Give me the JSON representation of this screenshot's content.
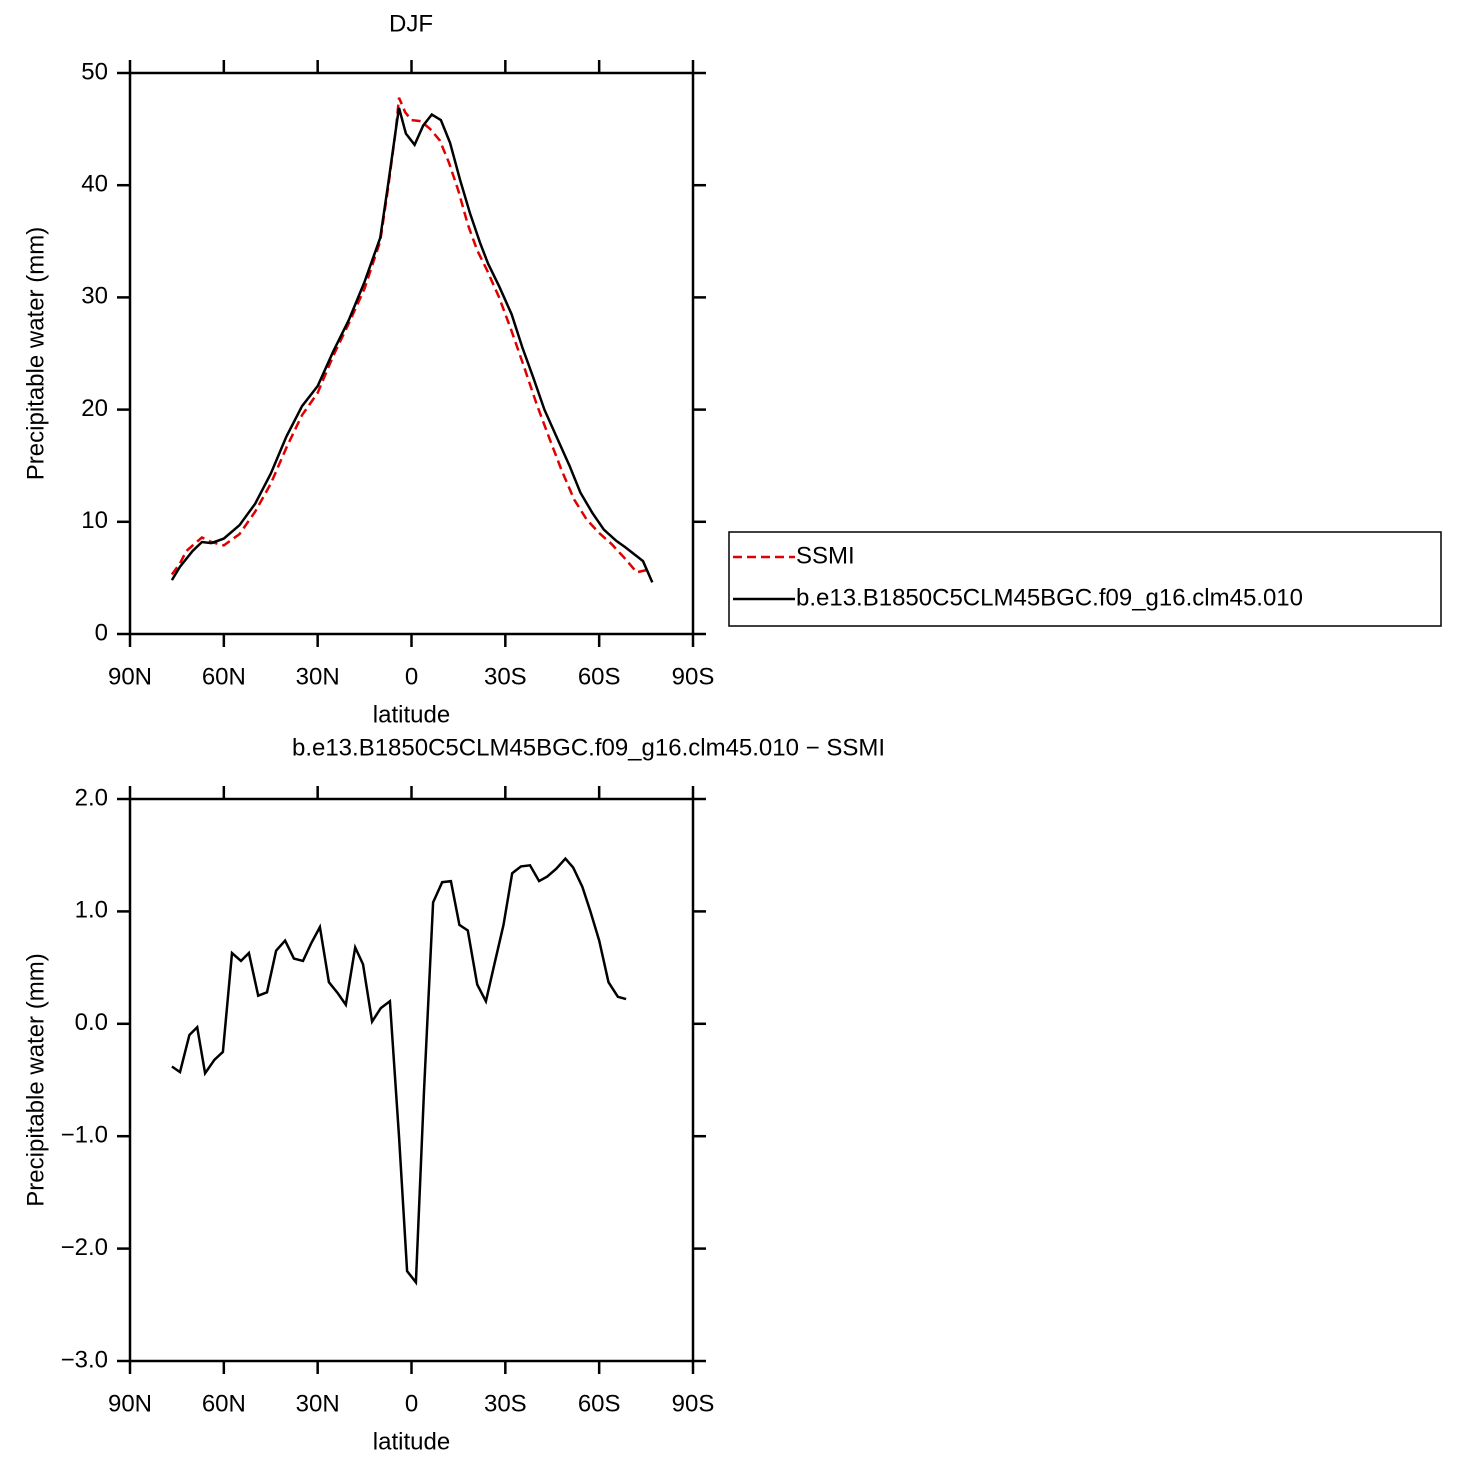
{
  "chart_data": [
    {
      "type": "line",
      "title": "DJF",
      "xlabel": "latitude",
      "ylabel": "Precipitable water (mm)",
      "xlim": [
        90,
        -90
      ],
      "xticks": [
        {
          "value": 90,
          "label": "90N"
        },
        {
          "value": 60,
          "label": "60N"
        },
        {
          "value": 30,
          "label": "30N"
        },
        0,
        {
          "value": -30,
          "label": "30S"
        },
        {
          "value": -60,
          "label": "60S"
        },
        {
          "value": -90,
          "label": "90S"
        }
      ],
      "ylim": [
        0,
        50
      ],
      "yticks": [
        0,
        10,
        20,
        30,
        40,
        50
      ],
      "legend": "right",
      "series": [
        {
          "name": "SSMI",
          "color": "#e00000",
          "style": "dashed",
          "x": [
            76.6,
            74,
            72,
            67,
            64,
            60,
            55,
            50,
            45,
            40,
            35,
            30,
            25,
            20,
            15,
            10,
            7.5,
            5,
            4,
            2,
            0,
            -3,
            -6,
            -9,
            -12,
            -15,
            -18,
            -21,
            -24,
            -28,
            -32,
            -36,
            -40,
            -44,
            -48,
            -52,
            -56,
            -60,
            -64,
            -68,
            -72,
            -75.3
          ],
          "values": [
            5.3,
            6.3,
            7.4,
            8.6,
            8.2,
            7.9,
            8.9,
            10.9,
            13.4,
            16.6,
            19.5,
            21.5,
            24.8,
            27.7,
            30.8,
            35,
            39.7,
            45,
            47.8,
            46.5,
            45.8,
            45.7,
            45,
            44,
            42,
            39.5,
            36.5,
            34.2,
            32.5,
            30,
            27,
            23.8,
            20.5,
            17.5,
            14.6,
            12,
            10.2,
            9,
            8,
            6.8,
            5.5,
            5.7
          ]
        },
        {
          "name": "b.e13.B1850C5CLM45BGC.f09_g16.clm45.010",
          "color": "#000000",
          "style": "solid",
          "x": [
            76.6,
            74,
            70,
            67,
            64,
            60,
            55,
            50,
            45,
            40,
            35,
            30,
            25,
            20,
            15,
            10,
            7.5,
            5,
            4,
            1.8,
            -1,
            -3.7,
            -6.5,
            -9.4,
            -12.3,
            -15.5,
            -18.7,
            -22,
            -24.5,
            -28,
            -32,
            -35.5,
            -39,
            -42.5,
            -46.5,
            -50.5,
            -54,
            -57.8,
            -61.5,
            -65.5,
            -68.5,
            -74,
            -77
          ],
          "values": [
            4.8,
            6,
            7.4,
            8.2,
            8.1,
            8.5,
            9.7,
            11.6,
            14.3,
            17.6,
            20.3,
            22.1,
            25.2,
            28,
            31.4,
            35.3,
            40,
            45,
            46.9,
            44.6,
            43.6,
            45.3,
            46.3,
            45.8,
            43.8,
            40.5,
            37.5,
            34.8,
            33,
            31,
            28.5,
            25.5,
            22.8,
            20,
            17.5,
            15,
            12.6,
            10.8,
            9.3,
            8.3,
            7.7,
            6.5,
            4.6
          ]
        }
      ]
    },
    {
      "type": "line",
      "title": "b.e13.B1850C5CLM45BGC.f09_g16.clm45.010 − SSMI",
      "xlabel": "latitude",
      "ylabel": "Precipitable water (mm)",
      "xlim": [
        90,
        -90
      ],
      "xticks": [
        {
          "value": 90,
          "label": "90N"
        },
        {
          "value": 60,
          "label": "60N"
        },
        {
          "value": 30,
          "label": "30N"
        },
        0,
        {
          "value": -30,
          "label": "30S"
        },
        {
          "value": -60,
          "label": "60S"
        },
        {
          "value": -90,
          "label": "90S"
        }
      ],
      "ylim": [
        -3,
        2
      ],
      "yticks": [
        {
          "value": -3,
          "label": "−3.0"
        },
        {
          "value": -2,
          "label": "−2.0"
        },
        {
          "value": -1,
          "label": "−1.0"
        },
        {
          "value": 0,
          "label": "0.0"
        },
        {
          "value": 1,
          "label": "1.0"
        },
        {
          "value": 2,
          "label": "2.0"
        }
      ],
      "series": [
        {
          "color": "#000000",
          "style": "solid",
          "x": [
            76.6,
            74,
            71,
            68.5,
            66,
            63,
            60.3,
            57.4,
            54.5,
            52,
            49,
            46.2,
            43.3,
            40.4,
            37.6,
            34.7,
            32,
            29.3,
            26.4,
            23.5,
            21,
            18,
            15.5,
            12.6,
            9.8,
            6.9,
            4,
            1.4,
            -1.4,
            -4,
            -6.9,
            -9.8,
            -12.6,
            -15.3,
            -18,
            -21,
            -23.8,
            -26.5,
            -29.4,
            -32.2,
            -35,
            -37.9,
            -40.8,
            -43.4,
            -46.3,
            -49.2,
            -51.7,
            -54.6,
            -57.2,
            -60,
            -63,
            -66,
            -68.6
          ],
          "values": [
            -0.38,
            -0.43,
            -0.1,
            -0.03,
            -0.44,
            -0.32,
            -0.25,
            0.63,
            0.56,
            0.63,
            0.25,
            0.28,
            0.65,
            0.74,
            0.58,
            0.56,
            0.72,
            0.86,
            0.37,
            0.27,
            0.17,
            0.68,
            0.53,
            0.02,
            0.14,
            0.2,
            -1.0,
            -2.2,
            -2.3,
            -0.6,
            1.08,
            1.26,
            1.27,
            0.88,
            0.83,
            0.35,
            0.2,
            0.53,
            0.88,
            1.34,
            1.4,
            1.41,
            1.27,
            1.31,
            1.38,
            1.47,
            1.39,
            1.22,
            1.0,
            0.74,
            0.37,
            0.24,
            0.22
          ]
        }
      ]
    }
  ]
}
